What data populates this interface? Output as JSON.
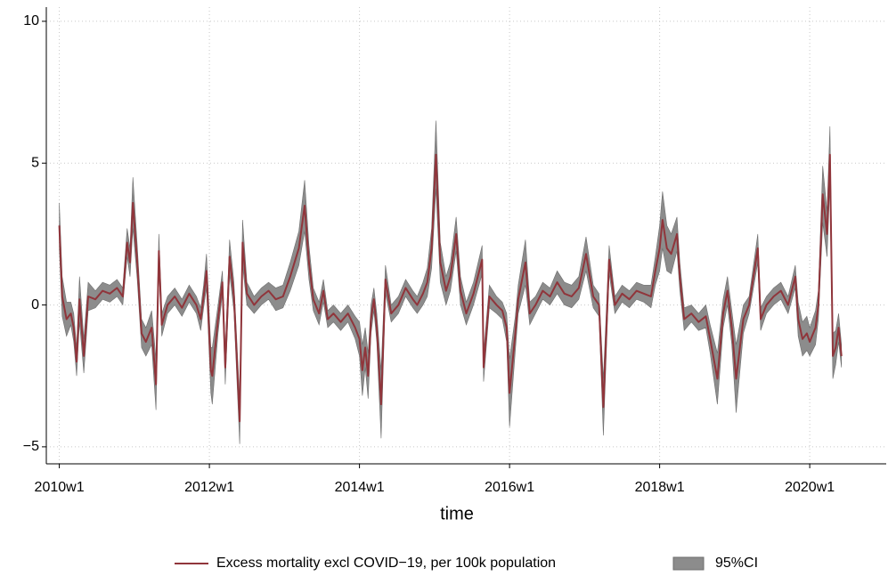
{
  "chart_data": {
    "type": "line",
    "x_title": "time",
    "x": [
      2600,
      2602,
      2605,
      2608,
      2610,
      2612,
      2614,
      2617,
      2620,
      2625,
      2630,
      2635,
      2640,
      2644,
      2647,
      2649,
      2651,
      2654,
      2657,
      2660,
      2664,
      2667,
      2669,
      2671,
      2675,
      2680,
      2685,
      2690,
      2695,
      2698,
      2700,
      2702,
      2705,
      2706,
      2710,
      2713,
      2715,
      2718,
      2721,
      2725,
      2727,
      2730,
      2735,
      2740,
      2745,
      2750,
      2755,
      2760,
      2766,
      2770,
      2773,
      2776,
      2780,
      2783,
      2786,
      2790,
      2795,
      2800,
      2805,
      2808,
      2810,
      2812,
      2814,
      2816,
      2818,
      2820,
      2823,
      2826,
      2830,
      2835,
      2840,
      2845,
      2848,
      2852,
      2855,
      2858,
      2861,
      2864,
      2868,
      2871,
      2875,
      2878,
      2882,
      2887,
      2893,
      2894,
      2898,
      2903,
      2907,
      2910,
      2912,
      2916,
      2918,
      2923,
      2926,
      2930,
      2935,
      2940,
      2945,
      2950,
      2955,
      2960,
      2965,
      2970,
      2974,
      2977,
      2981,
      2985,
      2990,
      2995,
      3000,
      3005,
      3010,
      3013,
      3016,
      3018,
      3021,
      3024,
      3028,
      3030,
      3033,
      3038,
      3043,
      3048,
      3051,
      3056,
      3060,
      3063,
      3066,
      3069,
      3074,
      3078,
      3084,
      3086,
      3090,
      3095,
      3100,
      3105,
      3110,
      3112,
      3115,
      3118,
      3120,
      3124,
      3126,
      3129,
      3132,
      3134,
      3136,
      3138,
      3140,
      3142
    ],
    "series": [
      {
        "name": "Excess mortality excl COVID−19, per 100k population",
        "color": "#90353b",
        "values": [
          2.8,
          0.3,
          -0.5,
          -0.3,
          -0.8,
          -2.0,
          0.2,
          -1.8,
          0.3,
          0.2,
          0.5,
          0.4,
          0.6,
          0.3,
          2.2,
          1.5,
          3.6,
          1.5,
          -1.0,
          -1.3,
          -0.8,
          -2.8,
          1.9,
          -0.7,
          0.0,
          0.3,
          -0.1,
          0.4,
          0.0,
          -0.5,
          0.3,
          1.2,
          -2.3,
          -2.5,
          -0.5,
          0.8,
          -2.2,
          1.7,
          0.3,
          -4.1,
          2.2,
          0.4,
          0.0,
          0.3,
          0.5,
          0.2,
          0.3,
          1.0,
          2.0,
          3.5,
          1.5,
          0.2,
          -0.3,
          0.5,
          -0.5,
          -0.3,
          -0.6,
          -0.3,
          -0.8,
          -1.2,
          -2.3,
          -1.5,
          -2.5,
          -0.5,
          0.2,
          -0.8,
          -3.5,
          0.9,
          -0.3,
          0.0,
          0.6,
          0.2,
          0.0,
          0.4,
          0.8,
          2.0,
          5.3,
          1.5,
          0.5,
          1.0,
          2.5,
          0.5,
          -0.3,
          0.4,
          1.6,
          -2.2,
          0.3,
          0.0,
          -0.2,
          -0.8,
          -3.1,
          -1.0,
          0.2,
          1.5,
          -0.3,
          0.0,
          0.5,
          0.3,
          0.8,
          0.4,
          0.3,
          0.6,
          1.8,
          0.3,
          0.0,
          -3.6,
          1.6,
          0.0,
          0.4,
          0.2,
          0.5,
          0.4,
          0.3,
          1.2,
          2.0,
          3.0,
          2.0,
          1.8,
          2.5,
          1.0,
          -0.5,
          -0.3,
          -0.6,
          -0.4,
          -1.2,
          -2.6,
          -0.3,
          0.5,
          -0.8,
          -2.6,
          -0.5,
          0.0,
          2.0,
          -0.5,
          0.0,
          0.3,
          0.5,
          0.0,
          1.0,
          -0.5,
          -1.2,
          -1.0,
          -1.3,
          -0.8,
          0.0,
          3.9,
          2.5,
          5.3,
          -1.8,
          -1.5,
          -0.8,
          -1.8
        ]
      },
      {
        "name": "95%CI",
        "color": "#8c8c8c",
        "errors": [
          0.8,
          0.7,
          0.6,
          0.4,
          0.5,
          0.5,
          0.8,
          0.6,
          0.5,
          0.3,
          0.3,
          0.3,
          0.3,
          0.3,
          0.5,
          0.5,
          0.9,
          0.6,
          0.5,
          0.5,
          0.6,
          0.9,
          0.6,
          0.4,
          0.3,
          0.3,
          0.3,
          0.3,
          0.3,
          0.4,
          0.4,
          0.6,
          0.8,
          1.0,
          0.5,
          0.4,
          0.6,
          0.6,
          0.5,
          0.8,
          0.8,
          0.4,
          0.3,
          0.3,
          0.3,
          0.4,
          0.4,
          0.5,
          0.6,
          0.9,
          0.6,
          0.4,
          0.4,
          0.4,
          0.3,
          0.3,
          0.3,
          0.3,
          0.4,
          0.6,
          0.9,
          0.7,
          0.8,
          0.5,
          0.4,
          0.5,
          1.2,
          0.5,
          0.3,
          0.3,
          0.3,
          0.3,
          0.3,
          0.4,
          0.5,
          0.7,
          1.2,
          0.7,
          0.5,
          0.5,
          0.6,
          0.5,
          0.4,
          0.4,
          0.5,
          0.5,
          0.4,
          0.3,
          0.3,
          0.5,
          1.2,
          0.6,
          0.5,
          0.8,
          0.4,
          0.3,
          0.3,
          0.3,
          0.4,
          0.4,
          0.4,
          0.4,
          0.6,
          0.4,
          0.4,
          1.0,
          0.5,
          0.3,
          0.3,
          0.3,
          0.3,
          0.3,
          0.4,
          0.5,
          0.8,
          1.0,
          0.8,
          0.7,
          0.6,
          0.5,
          0.4,
          0.3,
          0.3,
          0.4,
          0.5,
          0.9,
          0.5,
          0.5,
          0.6,
          1.2,
          0.5,
          0.3,
          0.5,
          0.4,
          0.3,
          0.3,
          0.3,
          0.3,
          0.4,
          0.6,
          0.6,
          0.6,
          0.5,
          0.6,
          0.5,
          1.0,
          0.8,
          1.0,
          0.8,
          0.6,
          0.5,
          0.4
        ]
      }
    ],
    "xlim": [
      2591,
      3173
    ],
    "xticks": [
      {
        "value": 2600,
        "label": "2010w1"
      },
      {
        "value": 2704,
        "label": "2012w1"
      },
      {
        "value": 2808,
        "label": "2014w1"
      },
      {
        "value": 2912,
        "label": "2016w1"
      },
      {
        "value": 3016,
        "label": "2018w1"
      },
      {
        "value": 3120,
        "label": "2020w1"
      }
    ],
    "ylim": [
      -5.6,
      10.5
    ],
    "yticks": [
      {
        "value": -5,
        "label": "−5"
      },
      0,
      5,
      10
    ],
    "grid": true
  }
}
